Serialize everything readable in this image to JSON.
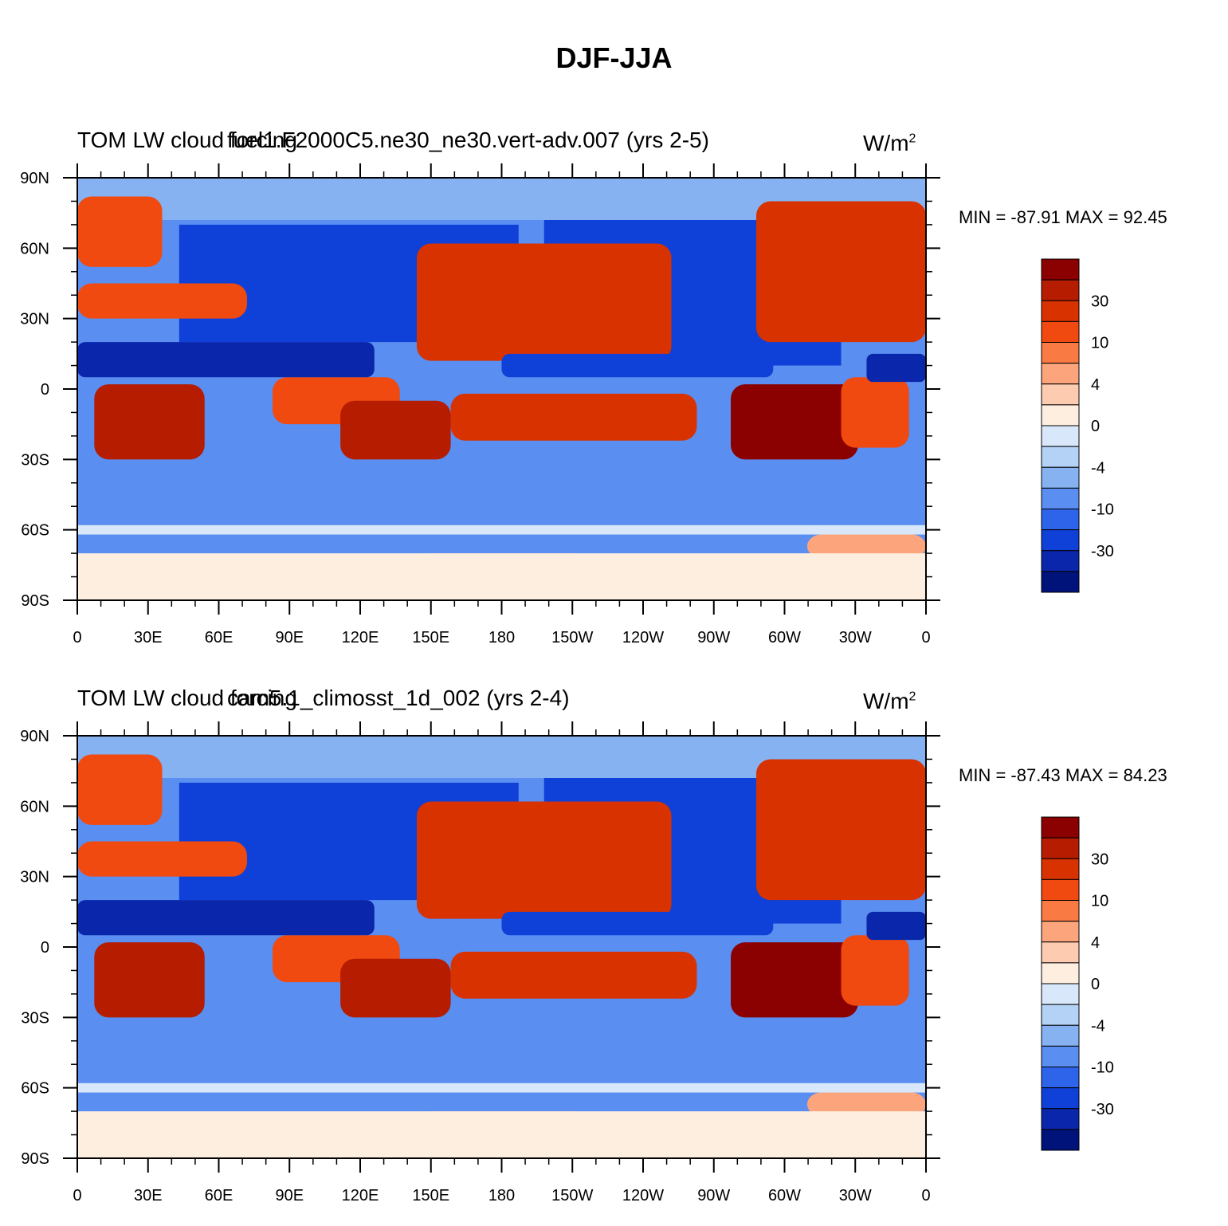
{
  "title": "DJF-JJA",
  "colorbar": {
    "labels": [
      "30",
      "10",
      "4",
      "0",
      "-4",
      "-10",
      "-30"
    ],
    "colors": [
      "#8b0000",
      "#b51c00",
      "#d83200",
      "#f04a10",
      "#fa7a44",
      "#fca47c",
      "#fdcbb0",
      "#fdeedf",
      "#d8e8fa",
      "#b4d2f6",
      "#86b2f2",
      "#5a8ef0",
      "#2e64ea",
      "#0f40d8",
      "#0a26aa",
      "#00137a"
    ]
  },
  "axes": {
    "lat_labels": [
      "90N",
      "60N",
      "30N",
      "0",
      "30S",
      "60S",
      "90S"
    ],
    "lon_labels": [
      "0",
      "30E",
      "60E",
      "90E",
      "120E",
      "150E",
      "180",
      "150W",
      "120W",
      "90W",
      "60W",
      "30W",
      "0"
    ]
  },
  "panels": [
    {
      "title_left": "TOM LW cloud forcing",
      "title_center": "fuel1.F2000C5.ne30_ne30.vert-adv.007 (yrs 2-5)",
      "units": "W/m",
      "units_sup": "2",
      "minmax": "MIN = -87.91 MAX =  92.45"
    },
    {
      "title_left": "TOM LW cloud forcing",
      "title_center": "cam5.1_climosst_1d_002 (yrs 2-4)",
      "units": "W/m",
      "units_sup": "2",
      "minmax": "MIN = -87.43 MAX =  84.23"
    }
  ]
}
